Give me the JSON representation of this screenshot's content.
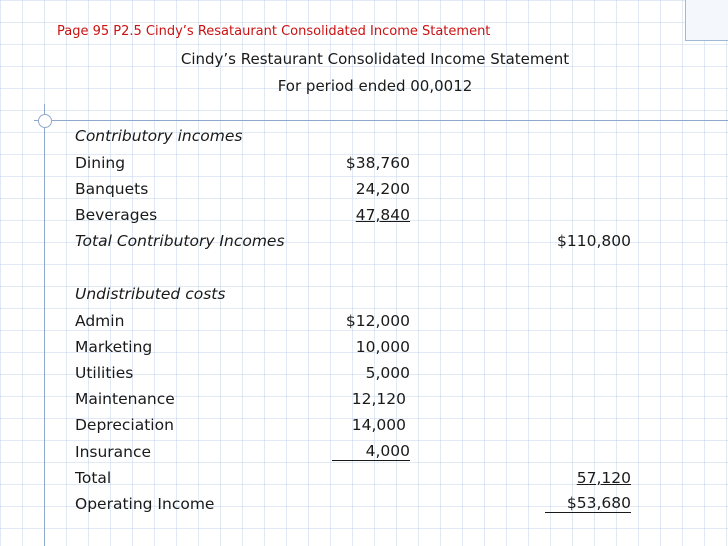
{
  "slide": {
    "header": "Page 95 P2.5 Cindy’s Resataurant Consolidated Income Statement",
    "title": "Cindy’s Restaurant Consolidated Income Statement",
    "subtitle": "For period ended 00,0012"
  },
  "statement": {
    "contributory": {
      "heading": "Contributory incomes",
      "items": [
        {
          "label": "Dining",
          "amount": "$38,760"
        },
        {
          "label": "Banquets",
          "amount": "24,200"
        },
        {
          "label": "Beverages",
          "amount": "47,840"
        }
      ],
      "total_label": "Total Contributory  Incomes",
      "total_amount": "$110,800"
    },
    "undistributed": {
      "heading": "Undistributed costs",
      "items": [
        {
          "label": "Admin",
          "amount": "$12,000"
        },
        {
          "label": "Marketing",
          "amount": "10,000"
        },
        {
          "label": "Utilities",
          "amount": "5,000"
        },
        {
          "label": "Maintenance",
          "amount": "12,120"
        },
        {
          "label": "Depreciation",
          "amount": "14,000"
        },
        {
          "label": "Insurance",
          "amount": "4,000"
        }
      ],
      "total_label": "Total",
      "total_amount": "57,120"
    },
    "operating_income": {
      "label": "Operating Income",
      "amount": "$53,680"
    }
  }
}
